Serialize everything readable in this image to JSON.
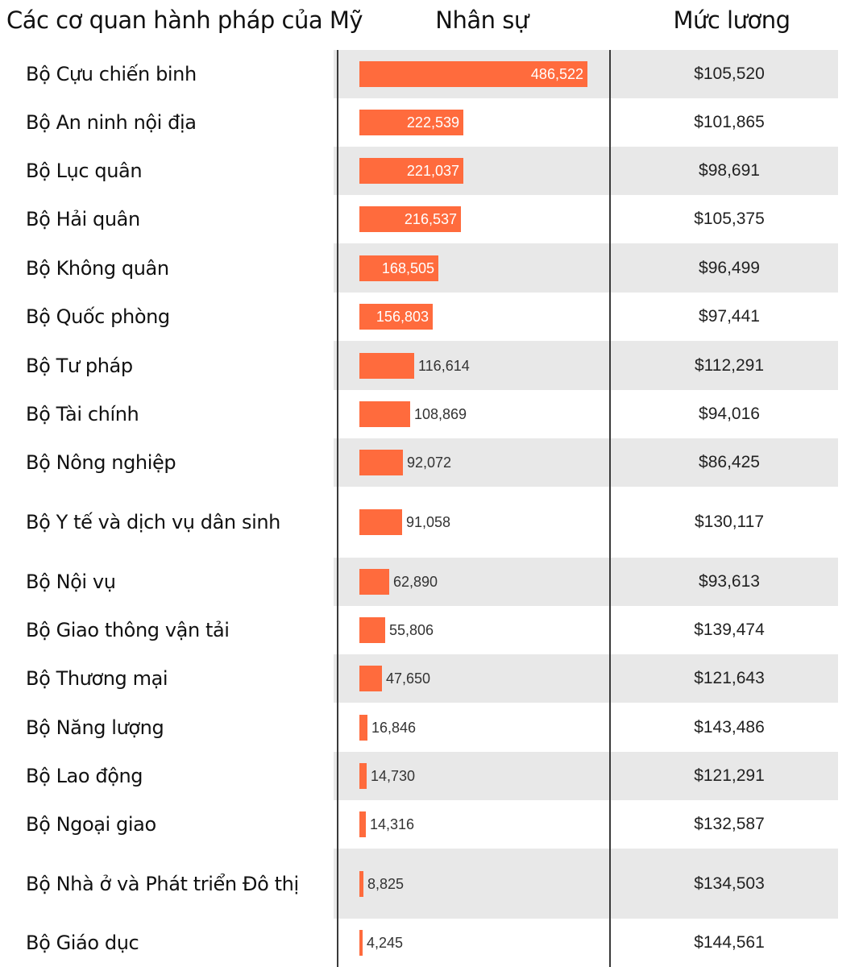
{
  "headers": {
    "agency": "Các cơ quan hành pháp của Mỹ",
    "staff": "Nhân sự",
    "salary": "Mức lương"
  },
  "colors": {
    "bar": "#ff6b3d",
    "row_shaded": "#e8e8e8",
    "row_plain": "#ffffff",
    "label_inside": "#ffffff",
    "label_outside": "#333333"
  },
  "chart_data": {
    "type": "table",
    "columns": [
      "Các cơ quan hành pháp của Mỹ",
      "Nhân sự",
      "Mức lương"
    ],
    "rows": [
      {
        "name": "Bộ Cựu chiến binh",
        "staff": 486522,
        "staff_label": "486,522",
        "salary": "$105,520"
      },
      {
        "name": "Bộ An ninh nội địa",
        "staff": 222539,
        "staff_label": "222,539",
        "salary": "$101,865"
      },
      {
        "name": "Bộ Lục quân",
        "staff": 221037,
        "staff_label": "221,037",
        "salary": "$98,691"
      },
      {
        "name": "Bộ Hải quân",
        "staff": 216537,
        "staff_label": "216,537",
        "salary": "$105,375"
      },
      {
        "name": "Bộ Không quân",
        "staff": 168505,
        "staff_label": "168,505",
        "salary": "$96,499"
      },
      {
        "name": "Bộ Quốc phòng",
        "staff": 156803,
        "staff_label": "156,803",
        "salary": "$97,441"
      },
      {
        "name": "Bộ Tư pháp",
        "staff": 116614,
        "staff_label": "116,614",
        "salary": "$112,291"
      },
      {
        "name": "Bộ Tài chính",
        "staff": 108869,
        "staff_label": "108,869",
        "salary": "$94,016"
      },
      {
        "name": "Bộ Nông nghiệp",
        "staff": 92072,
        "staff_label": "92,072",
        "salary": "$86,425"
      },
      {
        "name": "Bộ Y tế và dịch vụ dân sinh",
        "staff": 91058,
        "staff_label": "91,058",
        "salary": "$130,117"
      },
      {
        "name": "Bộ Nội vụ",
        "staff": 62890,
        "staff_label": "62,890",
        "salary": "$93,613"
      },
      {
        "name": "Bộ Giao thông vận tải",
        "staff": 55806,
        "staff_label": "55,806",
        "salary": "$139,474"
      },
      {
        "name": "Bộ Thương mại",
        "staff": 47650,
        "staff_label": "47,650",
        "salary": "$121,643"
      },
      {
        "name": "Bộ Năng lượng",
        "staff": 16846,
        "staff_label": "16,846",
        "salary": "$143,486"
      },
      {
        "name": "Bộ Lao động",
        "staff": 14730,
        "staff_label": "14,730",
        "salary": "$121,291"
      },
      {
        "name": "Bộ Ngoại giao",
        "staff": 14316,
        "staff_label": "14,316",
        "salary": "$132,587"
      },
      {
        "name": "Bộ Nhà ở và Phát triển Đô thị",
        "staff": 8825,
        "staff_label": "8,825",
        "salary": "$134,503"
      },
      {
        "name": "Bộ Giáo dục",
        "staff": 4245,
        "staff_label": "4,245",
        "salary": "$144,561"
      }
    ]
  }
}
